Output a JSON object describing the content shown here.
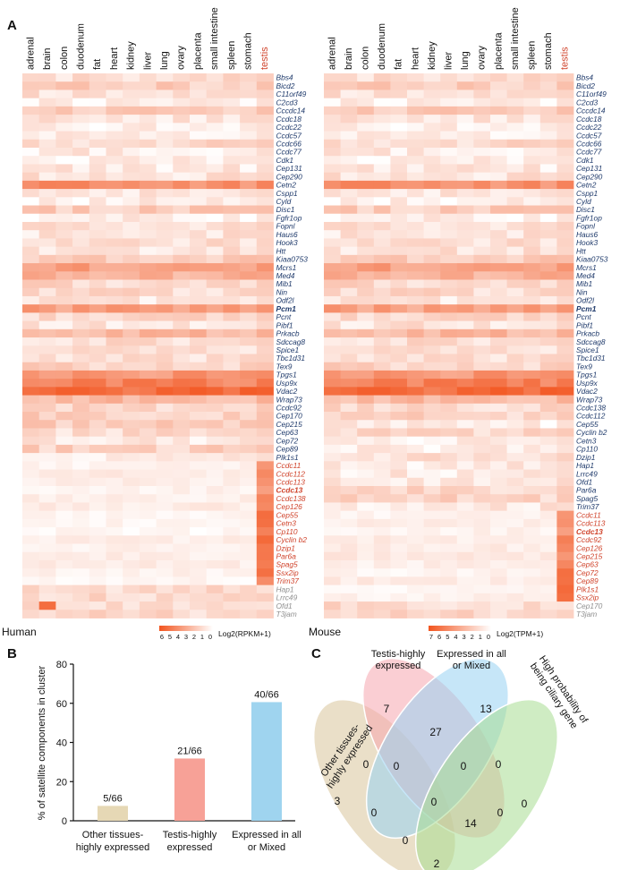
{
  "figure": {
    "panel_a": "A",
    "panel_b": "B",
    "panel_c": "C"
  },
  "heatmap_human": {
    "label": "Human",
    "legend_title": "Log2(RPKM+1)",
    "legend_ticks": [
      "6",
      "5",
      "4",
      "3",
      "2",
      "1",
      "0"
    ],
    "tissues": [
      "adrenal",
      "brain",
      "colon",
      "duodenum",
      "fat",
      "heart",
      "kidney",
      "liver",
      "lung",
      "ovary",
      "placenta",
      "small intestine",
      "spleen",
      "stomach",
      "testis"
    ],
    "genes": [
      {
        "name": "Bbs4",
        "g": 0
      },
      {
        "name": "Bicd2",
        "g": 0
      },
      {
        "name": "C11orf49",
        "g": 0
      },
      {
        "name": "C2cd3",
        "g": 0
      },
      {
        "name": "Cccdc14",
        "g": 0
      },
      {
        "name": "Ccdc18",
        "g": 0
      },
      {
        "name": "Ccdc22",
        "g": 0
      },
      {
        "name": "Ccdc57",
        "g": 0
      },
      {
        "name": "Ccdc66",
        "g": 0
      },
      {
        "name": "Ccdc77",
        "g": 0
      },
      {
        "name": "Cdk1",
        "g": 0
      },
      {
        "name": "Cep131",
        "g": 0
      },
      {
        "name": "Cep290",
        "g": 0
      },
      {
        "name": "Cetn2",
        "g": 0
      },
      {
        "name": "Cspp1",
        "g": 0
      },
      {
        "name": "Cyld",
        "g": 0
      },
      {
        "name": "Disc1",
        "g": 0
      },
      {
        "name": "Fgfr1op",
        "g": 0
      },
      {
        "name": "Fopnl",
        "g": 0
      },
      {
        "name": "Haus6",
        "g": 0
      },
      {
        "name": "Hook3",
        "g": 0
      },
      {
        "name": "Htt",
        "g": 0
      },
      {
        "name": "Kiaa0753",
        "g": 0
      },
      {
        "name": "Mcrs1",
        "g": 0
      },
      {
        "name": "Med4",
        "g": 0
      },
      {
        "name": "Mib1",
        "g": 0
      },
      {
        "name": "Nin",
        "g": 0
      },
      {
        "name": "Odf2l",
        "g": 0
      },
      {
        "name": "Pcm1",
        "g": 0,
        "bold": true
      },
      {
        "name": "Pcnt",
        "g": 0
      },
      {
        "name": "Pibf1",
        "g": 0
      },
      {
        "name": "Prkacb",
        "g": 0
      },
      {
        "name": "Sdccag8",
        "g": 0
      },
      {
        "name": "Spice1",
        "g": 0
      },
      {
        "name": "Tbc1d31",
        "g": 0
      },
      {
        "name": "Tex9",
        "g": 0
      },
      {
        "name": "Tpgs1",
        "g": 0
      },
      {
        "name": "Usp9x",
        "g": 0
      },
      {
        "name": "Vdac2",
        "g": 0
      },
      {
        "name": "Wrap73",
        "g": 0
      },
      {
        "name": "Ccdc92",
        "g": 0
      },
      {
        "name": "Cep170",
        "g": 0
      },
      {
        "name": "Cep215",
        "g": 0
      },
      {
        "name": "Cep63",
        "g": 0
      },
      {
        "name": "Cep72",
        "g": 0
      },
      {
        "name": "Cep89",
        "g": 0
      },
      {
        "name": "Plk1s1",
        "g": 0
      },
      {
        "name": "Ccdc11",
        "g": 1
      },
      {
        "name": "Ccdc112",
        "g": 1
      },
      {
        "name": "Ccdc113",
        "g": 1
      },
      {
        "name": "Ccdc13",
        "g": 1,
        "bold": true
      },
      {
        "name": "Ccdc138",
        "g": 1
      },
      {
        "name": "Cep126",
        "g": 1
      },
      {
        "name": "Cep55",
        "g": 1
      },
      {
        "name": "Cetn3",
        "g": 1
      },
      {
        "name": "Cp110",
        "g": 1
      },
      {
        "name": "Cyclin b2",
        "g": 1
      },
      {
        "name": "Dzip1",
        "g": 1
      },
      {
        "name": "Par6a",
        "g": 1
      },
      {
        "name": "Spag5",
        "g": 1
      },
      {
        "name": "Ssx2ip",
        "g": 1
      },
      {
        "name": "Trim37",
        "g": 1
      },
      {
        "name": "Hap1",
        "g": 2
      },
      {
        "name": "Lrrc49",
        "g": 2
      },
      {
        "name": "Ofd1",
        "g": 2
      },
      {
        "name": "T3jam",
        "g": 2
      }
    ]
  },
  "heatmap_mouse": {
    "label": "Mouse",
    "legend_title": "Log2(TPM+1)",
    "legend_ticks": [
      "7",
      "6",
      "5",
      "4",
      "3",
      "2",
      "1",
      "0"
    ],
    "tissues": [
      "adrenal",
      "brain",
      "colon",
      "duodenum",
      "fat",
      "heart",
      "kidney",
      "liver",
      "lung",
      "ovary",
      "placenta",
      "small intestine",
      "spleen",
      "stomach",
      "testis"
    ],
    "genes": [
      {
        "name": "Bbs4",
        "g": 0
      },
      {
        "name": "Bicd2",
        "g": 0
      },
      {
        "name": "C11orf49",
        "g": 0
      },
      {
        "name": "C2cd3",
        "g": 0
      },
      {
        "name": "Cccdc14",
        "g": 0
      },
      {
        "name": "Ccdc18",
        "g": 0
      },
      {
        "name": "Ccdc22",
        "g": 0
      },
      {
        "name": "Ccdc57",
        "g": 0
      },
      {
        "name": "Ccdc66",
        "g": 0
      },
      {
        "name": "Ccdc77",
        "g": 0
      },
      {
        "name": "Cdk1",
        "g": 0
      },
      {
        "name": "Cep131",
        "g": 0
      },
      {
        "name": "Cep290",
        "g": 0
      },
      {
        "name": "Cetn2",
        "g": 0
      },
      {
        "name": "Cspp1",
        "g": 0
      },
      {
        "name": "Cyld",
        "g": 0
      },
      {
        "name": "Disc1",
        "g": 0
      },
      {
        "name": "Fgfr1op",
        "g": 0
      },
      {
        "name": "Fopnl",
        "g": 0
      },
      {
        "name": "Haus6",
        "g": 0
      },
      {
        "name": "Hook3",
        "g": 0
      },
      {
        "name": "Htt",
        "g": 0
      },
      {
        "name": "Kiaa0753",
        "g": 0
      },
      {
        "name": "Mcrs1",
        "g": 0
      },
      {
        "name": "Med4",
        "g": 0
      },
      {
        "name": "Mib1",
        "g": 0
      },
      {
        "name": "Nin",
        "g": 0
      },
      {
        "name": "Odf2l",
        "g": 0
      },
      {
        "name": "Pcm1",
        "g": 0,
        "bold": true
      },
      {
        "name": "Pcnt",
        "g": 0
      },
      {
        "name": "Pibf1",
        "g": 0
      },
      {
        "name": "Prkacb",
        "g": 0
      },
      {
        "name": "Sdccag8",
        "g": 0
      },
      {
        "name": "Spice1",
        "g": 0
      },
      {
        "name": "Tbc1d31",
        "g": 0
      },
      {
        "name": "Tex9",
        "g": 0
      },
      {
        "name": "Tpgs1",
        "g": 0
      },
      {
        "name": "Usp9x",
        "g": 0
      },
      {
        "name": "Vdac2",
        "g": 0
      },
      {
        "name": "Wrap73",
        "g": 0
      },
      {
        "name": "Ccdc138",
        "g": 0
      },
      {
        "name": "Ccdc112",
        "g": 0
      },
      {
        "name": "Cep55",
        "g": 0
      },
      {
        "name": "Cyclin b2",
        "g": 0
      },
      {
        "name": "Cetn3",
        "g": 0
      },
      {
        "name": "Cp110",
        "g": 0
      },
      {
        "name": "Dzip1",
        "g": 0
      },
      {
        "name": "Hap1",
        "g": 0
      },
      {
        "name": "Lrrc49",
        "g": 0
      },
      {
        "name": "Ofd1",
        "g": 0
      },
      {
        "name": "Par6a",
        "g": 0
      },
      {
        "name": "Spag5",
        "g": 0
      },
      {
        "name": "Trim37",
        "g": 0
      },
      {
        "name": "Ccdc11",
        "g": 1
      },
      {
        "name": "Ccdc113",
        "g": 1
      },
      {
        "name": "Ccdc13",
        "g": 1,
        "bold": true
      },
      {
        "name": "Ccdc92",
        "g": 1
      },
      {
        "name": "Cep126",
        "g": 1
      },
      {
        "name": "Cep215",
        "g": 1
      },
      {
        "name": "Cep63",
        "g": 1
      },
      {
        "name": "Cep72",
        "g": 1
      },
      {
        "name": "Cep89",
        "g": 1
      },
      {
        "name": "Plk1s1",
        "g": 1
      },
      {
        "name": "Ssx2ip",
        "g": 1
      },
      {
        "name": "Cep170",
        "g": 2
      },
      {
        "name": "T3jam",
        "g": 2
      }
    ]
  },
  "chart_data": [
    {
      "type": "bar",
      "ylabel": "% of satellite components in cluster",
      "ylim": [
        0,
        80
      ],
      "yticks": [
        "0",
        "20",
        "40",
        "60",
        "80"
      ],
      "categories": [
        [
          "Other tissues-",
          "highly expressed"
        ],
        [
          "Testis-highly",
          "expressed"
        ],
        [
          "Expressed in all",
          "or Mixed"
        ]
      ],
      "values": [
        7.6,
        31.8,
        60.6
      ],
      "labels": [
        "5/66",
        "21/66",
        "40/66"
      ],
      "colors": [
        "#e6d8b5",
        "#f7a197",
        "#9fd4ef"
      ]
    }
  ],
  "venn": {
    "sets": [
      {
        "label": [
          "Other tissues-",
          "highly expressed"
        ],
        "color": "#d9c49a"
      },
      {
        "label": [
          "Testis-highly",
          "expressed"
        ],
        "color": "#f5a6ae"
      },
      {
        "label": [
          "Expressed in all",
          "or Mixed"
        ],
        "color": "#98d2f3"
      },
      {
        "label": [
          "High probability of",
          "being ciliary gene"
        ],
        "color": "#a7dc92"
      }
    ],
    "counts": [
      "3",
      "7",
      "13",
      "0",
      "0",
      "27",
      "0",
      "0",
      "0",
      "0",
      "0",
      "0",
      "14",
      "0",
      "2"
    ]
  },
  "colors": {
    "heat_max": "#f2541e",
    "heat_min": "#ffffff",
    "blue_gene": "#1f3a6b",
    "red_gene": "#d0432b",
    "grey_gene": "#909090",
    "testis_label": "#d0432b"
  }
}
